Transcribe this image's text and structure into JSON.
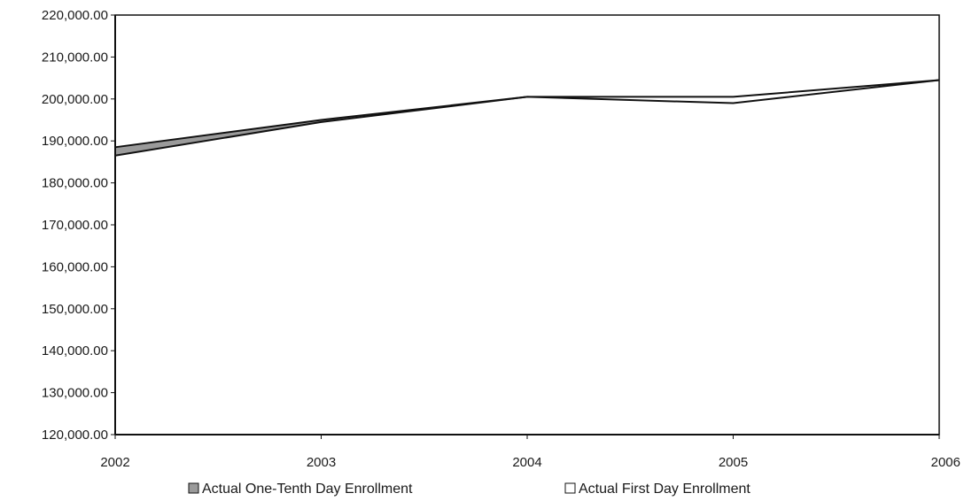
{
  "chart_data": {
    "type": "area",
    "title": "",
    "xlabel": "",
    "ylabel": "",
    "categories": [
      "2002",
      "2003",
      "2004",
      "2005",
      "2006"
    ],
    "series": [
      {
        "name": "Actual One-Tenth Day Enrollment",
        "values": [
          188500,
          195000,
          200500,
          199000,
          204500
        ],
        "color": "#9a9a9a"
      },
      {
        "name": "Actual First Day Enrollment",
        "values": [
          186500,
          194500,
          200500,
          200500,
          204500
        ],
        "color": "#ffffff"
      }
    ],
    "ylim": [
      120000,
      220000
    ],
    "yticks": [
      120000,
      130000,
      140000,
      150000,
      160000,
      170000,
      180000,
      190000,
      200000,
      210000,
      220000
    ],
    "ytick_labels": [
      "120,000.00",
      "130,000.00",
      "140,000.00",
      "150,000.00",
      "160,000.00",
      "170,000.00",
      "180,000.00",
      "190,000.00",
      "200,000.00",
      "210,000.00",
      "220,000.00"
    ],
    "grid": false,
    "legend": "bottom"
  }
}
